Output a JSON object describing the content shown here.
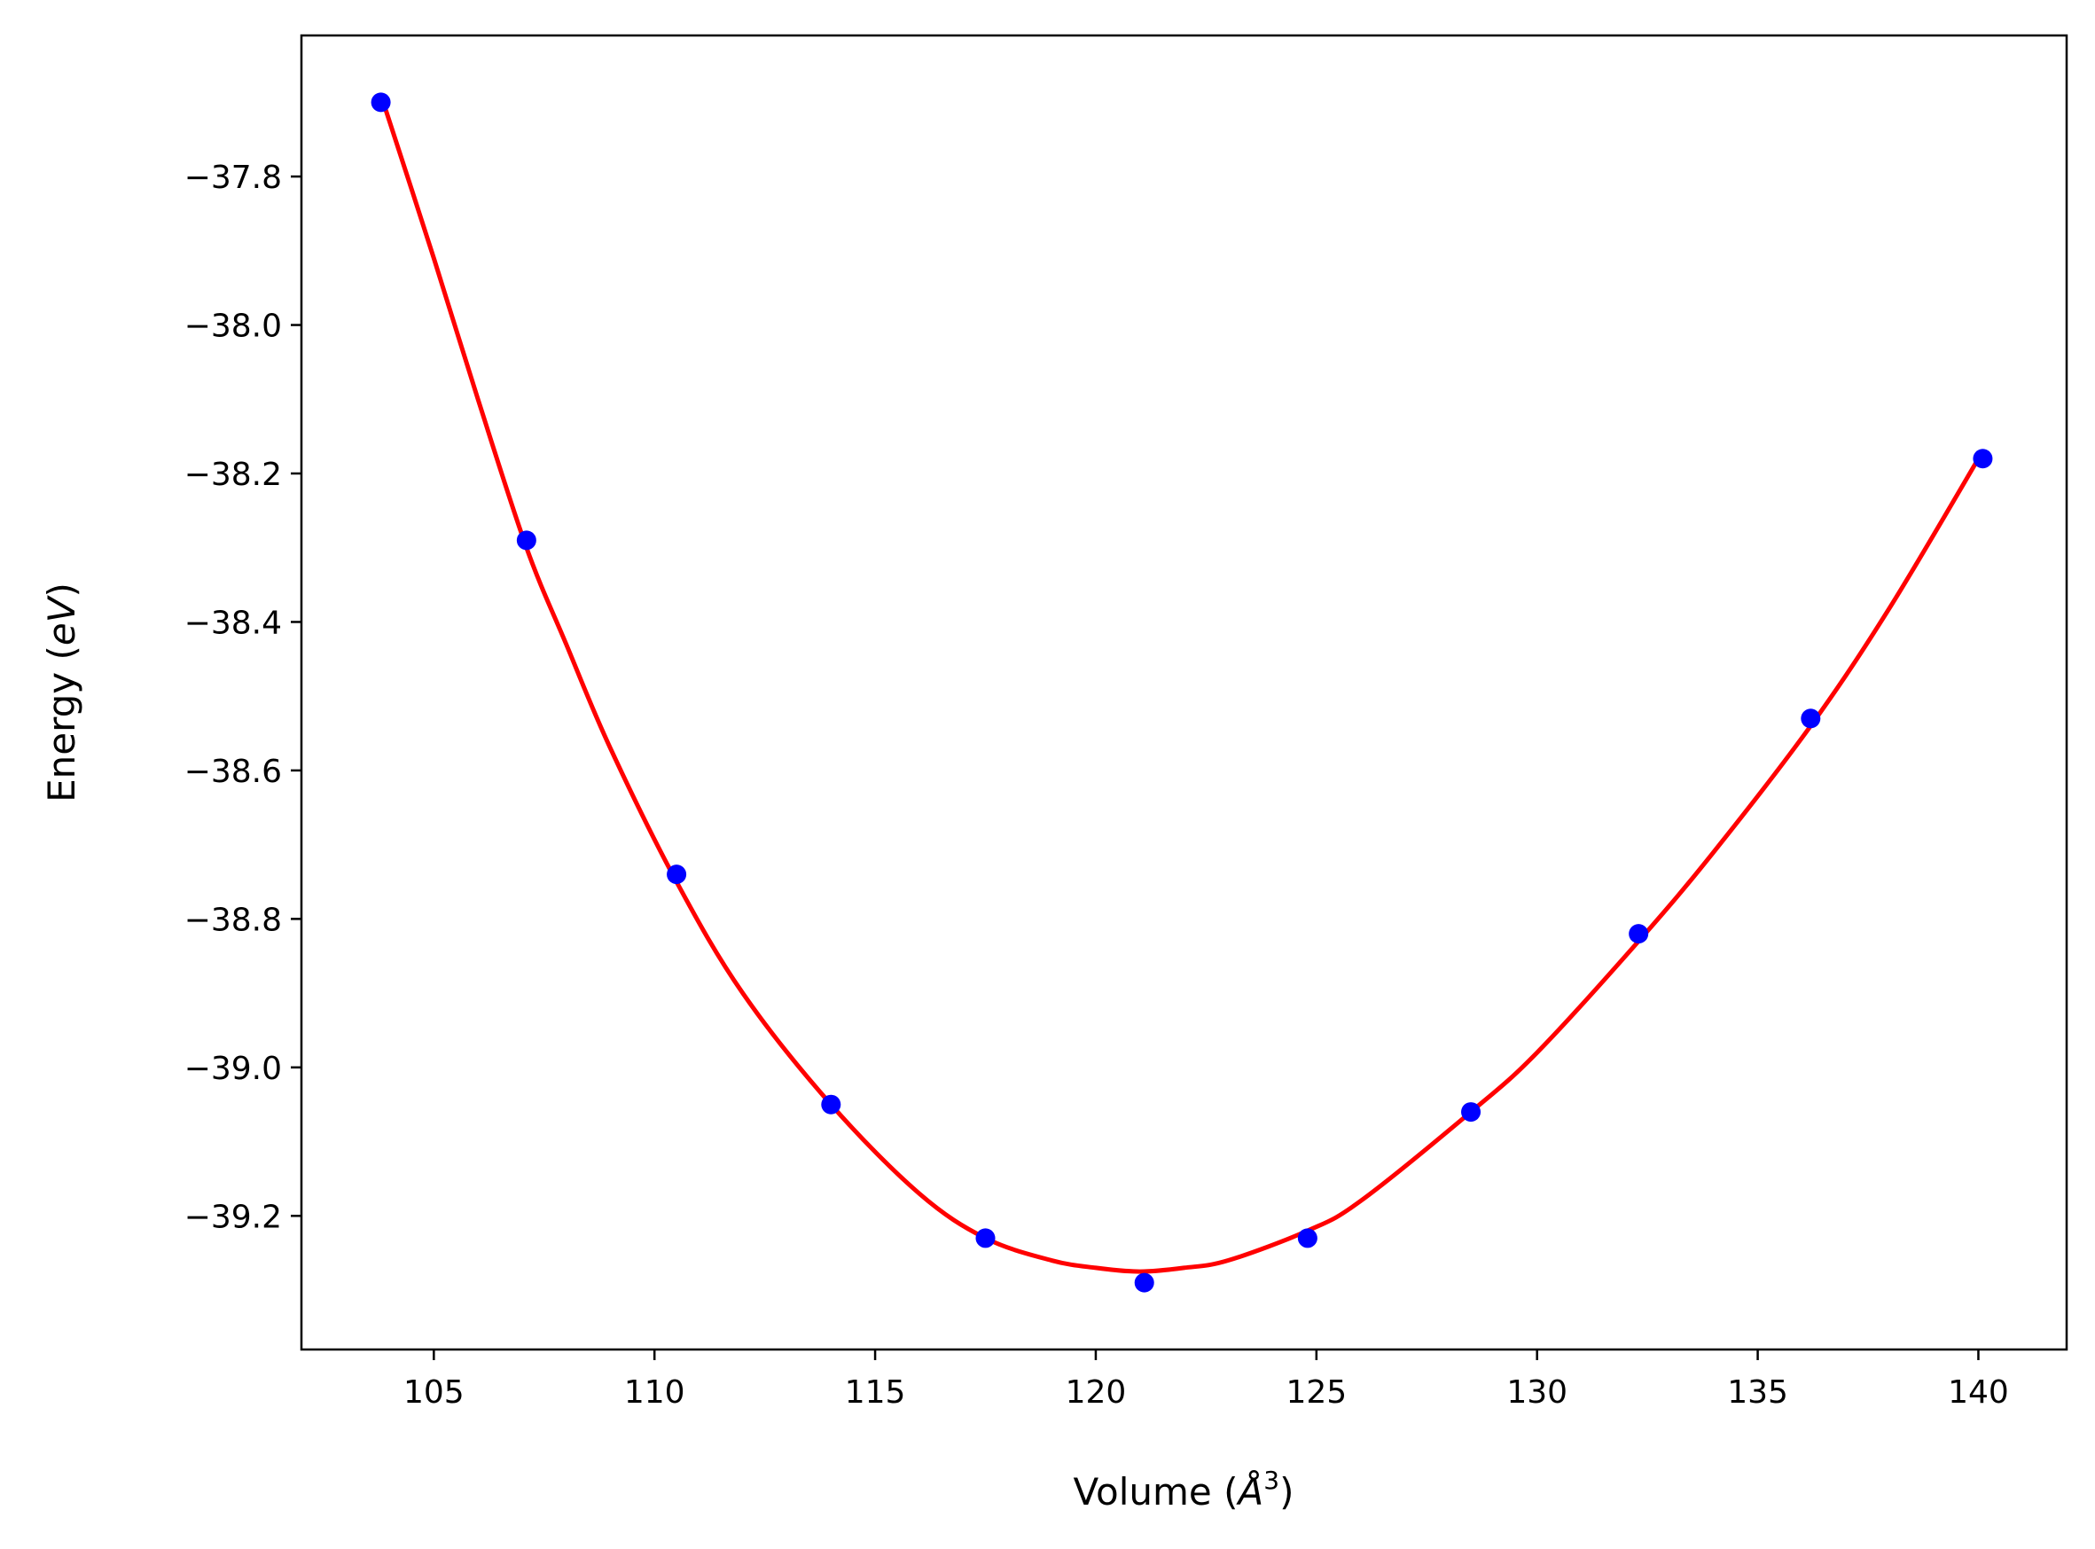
{
  "chart_data": {
    "type": "scatter",
    "title": "",
    "xlabel_main": "Volume (",
    "xlabel_unit": "Å",
    "xlabel_exp": "3",
    "xlabel_close": ")",
    "ylabel_main": "Energy (",
    "ylabel_unit": "eV",
    "ylabel_close": ")",
    "xlim": [
      102.0,
      142.0
    ],
    "ylim": [
      -39.38,
      -37.61
    ],
    "xticks": [
      105,
      110,
      115,
      120,
      125,
      130,
      135,
      140
    ],
    "xtick_labels": [
      "105",
      "110",
      "115",
      "120",
      "125",
      "130",
      "135",
      "140"
    ],
    "yticks": [
      -37.8,
      -38.0,
      -38.2,
      -38.4,
      -38.6,
      -38.8,
      -39.0,
      -39.2
    ],
    "ytick_labels": [
      "−37.8",
      "−38.0",
      "−38.2",
      "−38.4",
      "−38.6",
      "−38.8",
      "−39.0",
      "−39.2"
    ],
    "grid": false,
    "series": [
      {
        "kind": "points",
        "color": "#0000ff",
        "x": [
          103.8,
          107.1,
          110.5,
          114.0,
          117.5,
          121.1,
          124.8,
          128.5,
          132.3,
          136.2,
          140.1
        ],
        "y": [
          -37.7,
          -38.29,
          -38.74,
          -39.05,
          -39.23,
          -39.29,
          -39.23,
          -39.06,
          -38.82,
          -38.53,
          -38.18
        ]
      },
      {
        "kind": "fit-line",
        "color": "#ff0000",
        "x": [
          103.8,
          105.0,
          106.0,
          107.1,
          108.0,
          109.0,
          110.5,
          112.0,
          114.0,
          116.0,
          117.5,
          119.0,
          120.0,
          121.0,
          122.0,
          123.0,
          124.8,
          126.0,
          128.5,
          130.0,
          132.3,
          134.0,
          136.2,
          138.0,
          140.1
        ],
        "y": [
          -37.69,
          -37.91,
          -38.1,
          -38.3,
          -38.43,
          -38.57,
          -38.75,
          -38.9,
          -39.05,
          -39.17,
          -39.23,
          -39.26,
          -39.27,
          -39.275,
          -39.27,
          -39.26,
          -39.22,
          -39.18,
          -39.06,
          -38.98,
          -38.83,
          -38.71,
          -38.54,
          -38.38,
          -38.17
        ]
      }
    ]
  }
}
